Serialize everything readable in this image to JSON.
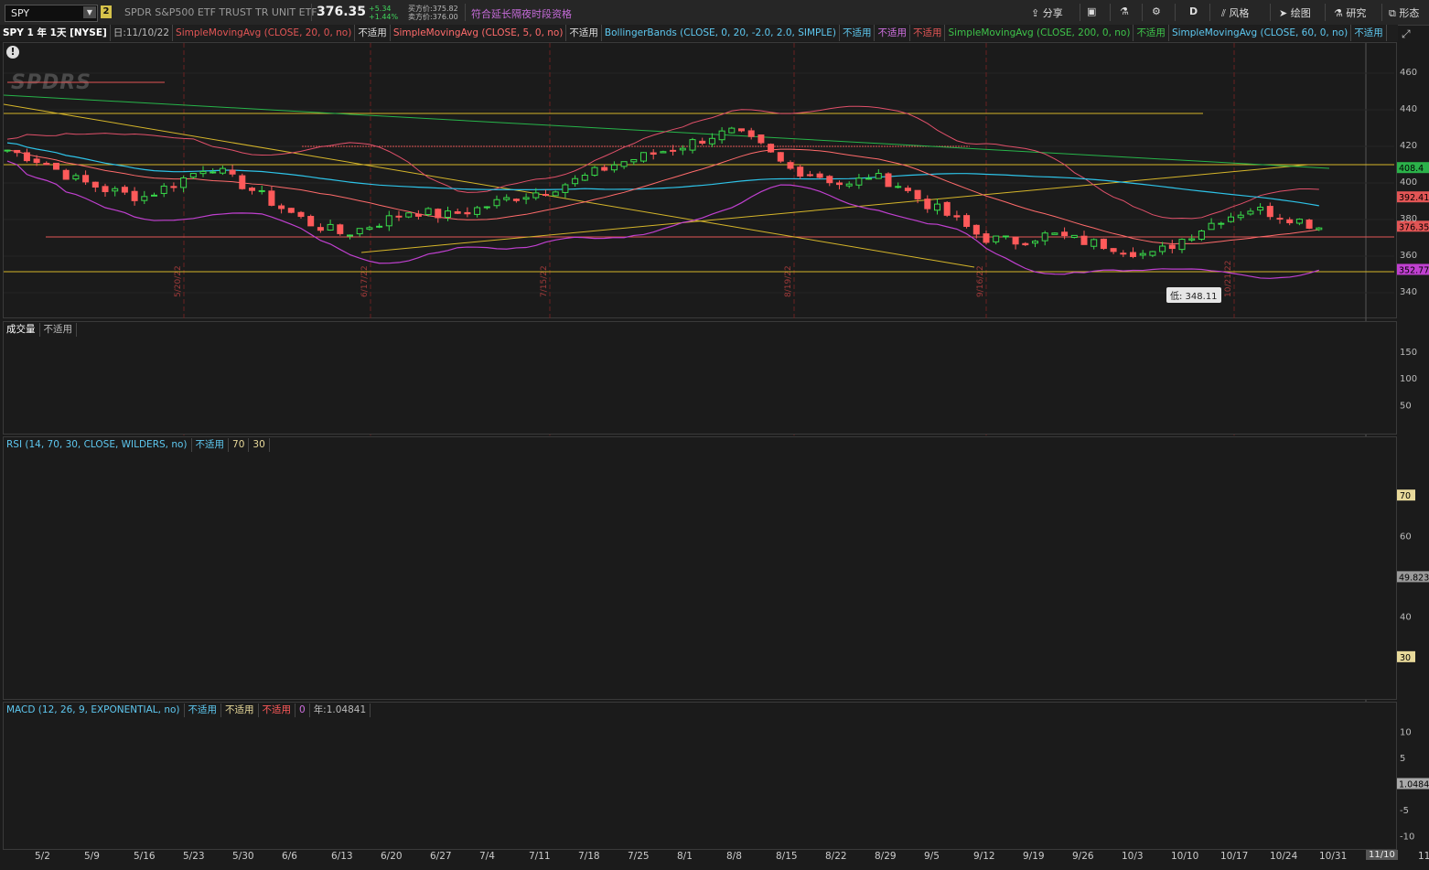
{
  "toolbar": {
    "symbol": "SPY",
    "link_badge": "2",
    "description": "SPDR S&P500 ETF TRUST TR UNIT ETF",
    "last": "376.35",
    "change": "+5.34",
    "change_pct": "+1.44%",
    "bid": "买方价:375.82",
    "ask": "卖方价:376.00",
    "ext_hours": "符合延长隔夜时段资格",
    "share_label": "分享",
    "style_label": "风格",
    "draw_label": "绘图",
    "research_label": "研究",
    "patterns_label": "形态",
    "d_label": "D"
  },
  "studies": {
    "symbol_tf": "SPY 1 年 1天 [NYSE]",
    "date": "日:11/10/22",
    "na": "不适用",
    "sma20": "SimpleMovingAvg (CLOSE, 20, 0, no)",
    "sma5": "SimpleMovingAvg (CLOSE, 5, 0, no)",
    "bb": "BollingerBands (CLOSE, 0, 20, -2.0, 2.0, SIMPLE)",
    "sma200": "SimpleMovingAvg (CLOSE, 200, 0, no)",
    "sma60": "SimpleMovingAvg (CLOSE, 60, 0, no)"
  },
  "price_axis": [
    "460",
    "440",
    "420",
    "400",
    "380",
    "360",
    "340"
  ],
  "price_tags": {
    "t1": "408.4",
    "t2": "392.41",
    "t3": "376.35",
    "t4": "352.77"
  },
  "low_tip": "低: 348.11",
  "vline_labels": [
    "5/20/22",
    "6/17/22",
    "7/15/22",
    "8/19/22",
    "9/16/22",
    "10/21/22"
  ],
  "volume": {
    "title": "成交量",
    "na": "不适用",
    "axis": [
      "150",
      "100",
      "50"
    ]
  },
  "rsi": {
    "title": "RSI (14, 70, 30, CLOSE, WILDERS, no)",
    "na": "不适用",
    "ob": "70",
    "os": "30",
    "axis": [
      "60",
      "40"
    ],
    "val": "49.823"
  },
  "macd": {
    "title": "MACD (12, 26, 9, EXPONENTIAL, no)",
    "na1": "不适用",
    "na2": "不适用",
    "na3": "不适用",
    "zero": "0",
    "year": "年:1.04841",
    "axis": [
      "10",
      "5",
      "-5",
      "-10"
    ],
    "val": "1.04841"
  },
  "x_dates": [
    "5/2",
    "5/9",
    "5/16",
    "5/23",
    "5/30",
    "6/6",
    "6/13",
    "6/20",
    "6/27",
    "7/4",
    "7/11",
    "7/18",
    "7/25",
    "8/1",
    "8/8",
    "8/15",
    "8/22",
    "8/29",
    "9/5",
    "9/12",
    "9/19",
    "9/26",
    "10/3",
    "10/10",
    "10/17",
    "10/24",
    "10/31",
    "11/7",
    "11/14"
  ],
  "cursor_date": "11/10",
  "colors": {
    "up": "#38d94a",
    "down": "#ff5a5a",
    "bb": "#c040d0",
    "sma20": "#e25555",
    "sma60": "#2ec3e8",
    "sma200": "#27b54a",
    "yellow": "#d6b62a",
    "vol": "#1e6fa8"
  }
}
